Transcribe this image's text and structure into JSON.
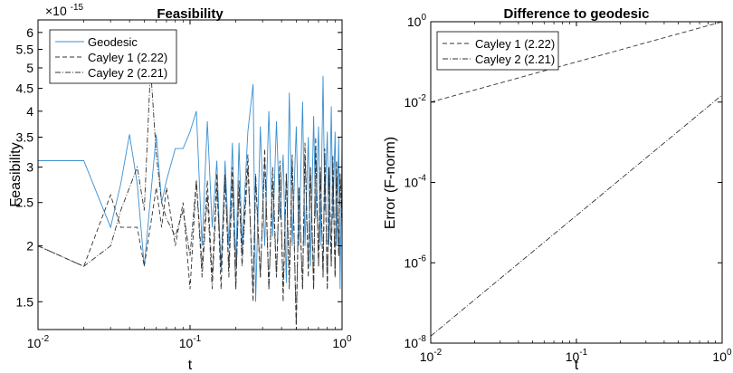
{
  "chart_data": [
    {
      "type": "line",
      "title": "Feasibility",
      "xlabel": "t",
      "ylabel": "Feasibility",
      "xscale": "log",
      "yscale": "log",
      "xlim": [
        0.01,
        1
      ],
      "ylim": [
        1.3e-15,
        6.4e-15
      ],
      "exponent_label": "×10",
      "exponent_power": "-15",
      "x_ticks": [
        {
          "value": 0.01,
          "base": "10",
          "exp": "-2"
        },
        {
          "value": 0.1,
          "base": "10",
          "exp": "-1"
        },
        {
          "value": 1,
          "base": "10",
          "exp": "0"
        }
      ],
      "y_ticks": [
        {
          "value": 1.5,
          "label": "1.5"
        },
        {
          "value": 2,
          "label": "2"
        },
        {
          "value": 2.5,
          "label": "2.5"
        },
        {
          "value": 3,
          "label": "3"
        },
        {
          "value": 3.5,
          "label": "3.5"
        },
        {
          "value": 4,
          "label": "4"
        },
        {
          "value": 4.5,
          "label": "4.5"
        },
        {
          "value": 5,
          "label": "5"
        },
        {
          "value": 5.5,
          "label": "5.5"
        },
        {
          "value": 6,
          "label": "6"
        }
      ],
      "legend_position": "top-left",
      "series": [
        {
          "name": "Geodesic",
          "color": "#3a8fd1",
          "dash": "solid",
          "x": [
            0.01,
            0.02,
            0.03,
            0.035,
            0.04,
            0.045,
            0.05,
            0.06,
            0.065,
            0.07,
            0.08,
            0.09,
            0.1,
            0.11,
            0.12,
            0.13,
            0.14,
            0.15,
            0.16,
            0.17,
            0.18,
            0.19,
            0.2,
            0.21,
            0.22,
            0.24,
            0.26,
            0.27,
            0.29,
            0.31,
            0.33,
            0.35,
            0.37,
            0.39,
            0.41,
            0.43,
            0.45,
            0.47,
            0.5,
            0.52,
            0.55,
            0.57,
            0.6,
            0.62,
            0.65,
            0.67,
            0.7,
            0.72,
            0.75,
            0.77,
            0.8,
            0.82,
            0.85,
            0.87,
            0.9,
            0.92,
            0.95,
            0.97,
            1.0
          ],
          "y": [
            3.1,
            3.1,
            2.2,
            2.75,
            3.55,
            2.75,
            1.8,
            3.55,
            2.5,
            2.8,
            3.3,
            3.3,
            3.6,
            4.0,
            2.0,
            3.8,
            2.2,
            3.1,
            1.75,
            3.1,
            2.0,
            3.4,
            1.8,
            3.4,
            2.0,
            3.6,
            4.6,
            1.5,
            3.7,
            2.0,
            4.0,
            2.1,
            3.8,
            2.3,
            3.2,
            1.65,
            4.4,
            2.0,
            3.7,
            2.0,
            4.2,
            2.0,
            3.5,
            1.8,
            3.9,
            2.3,
            3.7,
            2.0,
            4.8,
            2.4,
            3.6,
            2.0,
            4.1,
            2.3,
            3.6,
            2.0,
            3.5,
            1.6,
            3.4
          ]
        },
        {
          "name": "Cayley 1 (2.22)",
          "color": "#333333",
          "dash": "5,3",
          "x": [
            0.01,
            0.02,
            0.03,
            0.035,
            0.04,
            0.045,
            0.05,
            0.06,
            0.065,
            0.07,
            0.08,
            0.09,
            0.1,
            0.11,
            0.12,
            0.13,
            0.14,
            0.15,
            0.16,
            0.17,
            0.18,
            0.19,
            0.2,
            0.21,
            0.22,
            0.24,
            0.26,
            0.27,
            0.29,
            0.31,
            0.33,
            0.35,
            0.37,
            0.39,
            0.41,
            0.43,
            0.45,
            0.47,
            0.5,
            0.52,
            0.55,
            0.57,
            0.6,
            0.62,
            0.65,
            0.67,
            0.7,
            0.72,
            0.75,
            0.77,
            0.8,
            0.82,
            0.85,
            0.87,
            0.9,
            0.92,
            0.95,
            0.97,
            1.0
          ],
          "y": [
            2.0,
            1.8,
            2.6,
            2.2,
            2.2,
            2.2,
            1.8,
            2.7,
            2.2,
            2.7,
            2.0,
            2.5,
            1.6,
            2.8,
            1.8,
            2.8,
            1.7,
            2.9,
            1.6,
            2.8,
            1.8,
            3.0,
            1.6,
            2.8,
            1.9,
            3.2,
            1.5,
            2.8,
            1.7,
            3.3,
            1.6,
            3.0,
            1.7,
            3.1,
            1.5,
            2.9,
            1.6,
            3.2,
            1.3,
            2.7,
            1.6,
            3.4,
            1.7,
            3.0,
            1.6,
            3.5,
            1.8,
            3.0,
            1.7,
            3.3,
            1.6,
            3.0,
            1.8,
            3.2,
            1.7,
            3.1,
            1.9,
            2.9,
            2.4
          ]
        },
        {
          "name": "Cayley 2 (2.21)",
          "color": "#333333",
          "dash": "6,2,1,2",
          "x": [
            0.01,
            0.02,
            0.03,
            0.035,
            0.04,
            0.045,
            0.05,
            0.055,
            0.06,
            0.065,
            0.07,
            0.08,
            0.09,
            0.1,
            0.11,
            0.12,
            0.13,
            0.14,
            0.15,
            0.16,
            0.17,
            0.18,
            0.19,
            0.2,
            0.21,
            0.22,
            0.24,
            0.26,
            0.27,
            0.29,
            0.31,
            0.33,
            0.35,
            0.37,
            0.39,
            0.41,
            0.43,
            0.45,
            0.47,
            0.5,
            0.52,
            0.55,
            0.57,
            0.6,
            0.62,
            0.65,
            0.67,
            0.7,
            0.72,
            0.75,
            0.77,
            0.8,
            0.82,
            0.85,
            0.87,
            0.9,
            0.92,
            0.95,
            0.97,
            1.0
          ],
          "y": [
            2.0,
            1.8,
            2.0,
            2.4,
            2.7,
            3.0,
            2.4,
            5.0,
            3.2,
            2.5,
            2.3,
            2.1,
            2.4,
            1.9,
            2.8,
            1.7,
            2.6,
            1.6,
            2.7,
            1.8,
            2.9,
            1.7,
            2.8,
            1.6,
            2.7,
            1.8,
            3.0,
            1.6,
            2.9,
            1.7,
            3.1,
            1.6,
            2.8,
            1.7,
            3.0,
            1.6,
            2.9,
            1.7,
            3.1,
            1.35,
            2.7,
            1.6,
            3.2,
            1.8,
            3.0,
            1.6,
            3.3,
            1.8,
            3.0,
            1.7,
            3.2,
            1.6,
            3.0,
            1.8,
            3.1,
            1.7,
            3.0,
            1.9,
            2.9,
            2.2
          ]
        }
      ]
    },
    {
      "type": "line",
      "title": "Difference to geodesic",
      "xlabel": "t",
      "ylabel": "Error (F-norm)",
      "xscale": "log",
      "yscale": "log",
      "xlim": [
        0.01,
        1
      ],
      "ylim": [
        1e-08,
        1
      ],
      "x_ticks": [
        {
          "value": 0.01,
          "base": "10",
          "exp": "-2"
        },
        {
          "value": 0.1,
          "base": "10",
          "exp": "-1"
        },
        {
          "value": 1,
          "base": "10",
          "exp": "0"
        }
      ],
      "y_ticks": [
        {
          "value": 1e-08,
          "base": "10",
          "exp": "-8"
        },
        {
          "value": 1e-06,
          "base": "10",
          "exp": "-6"
        },
        {
          "value": 0.0001,
          "base": "10",
          "exp": "-4"
        },
        {
          "value": 0.01,
          "base": "10",
          "exp": "-2"
        },
        {
          "value": 1,
          "base": "10",
          "exp": "0"
        }
      ],
      "legend_position": "top-left",
      "series": [
        {
          "name": "Cayley 1 (2.22)",
          "color": "#333333",
          "dash": "5,3",
          "x": [
            0.01,
            1
          ],
          "y": [
            0.01,
            1
          ]
        },
        {
          "name": "Cayley 2 (2.21)",
          "color": "#333333",
          "dash": "6,2,1,2",
          "x": [
            0.01,
            1
          ],
          "y": [
            1.5e-08,
            0.015
          ]
        }
      ]
    }
  ]
}
